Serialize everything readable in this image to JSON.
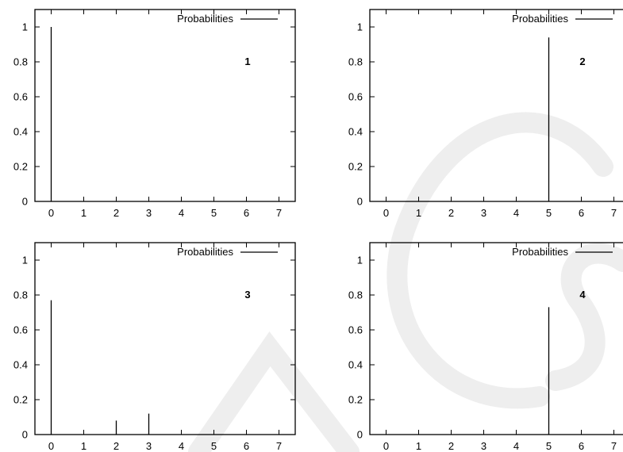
{
  "chart_data": [
    {
      "type": "bar",
      "legend": "Probabilities",
      "legend_position": "top-right",
      "panel_label": "1",
      "x": [
        0,
        1,
        2,
        3,
        4,
        5,
        6,
        7
      ],
      "values": [
        1.0,
        0,
        0,
        0,
        0,
        0,
        0,
        0
      ],
      "xlim": [
        -0.5,
        7.5
      ],
      "ylim": [
        0,
        1.1
      ],
      "yticks": [
        0,
        0.2,
        0.4,
        0.6,
        0.8,
        1
      ],
      "ytick_labels": [
        "0",
        "0.2",
        "0.4",
        "0.6",
        "0.8",
        "1"
      ],
      "xtick_labels": [
        "0",
        "1",
        "2",
        "3",
        "4",
        "5",
        "6",
        "7"
      ]
    },
    {
      "type": "bar",
      "legend": "Probabilities",
      "legend_position": "top-right",
      "panel_label": "2",
      "x": [
        0,
        1,
        2,
        3,
        4,
        5,
        6,
        7
      ],
      "values": [
        0,
        0,
        0,
        0,
        0,
        0.94,
        0,
        0
      ],
      "xlim": [
        -0.5,
        7.5
      ],
      "ylim": [
        0,
        1.1
      ],
      "yticks": [
        0,
        0.2,
        0.4,
        0.6,
        0.8,
        1
      ],
      "ytick_labels": [
        "0",
        "0.2",
        "0.4",
        "0.6",
        "0.8",
        "1"
      ],
      "xtick_labels": [
        "0",
        "1",
        "2",
        "3",
        "4",
        "5",
        "6",
        "7"
      ]
    },
    {
      "type": "bar",
      "legend": "Probabilities",
      "legend_position": "top-right",
      "panel_label": "3",
      "x": [
        0,
        1,
        2,
        3,
        4,
        5,
        6,
        7
      ],
      "values": [
        0.77,
        0,
        0.08,
        0.12,
        0,
        0,
        0,
        0
      ],
      "xlim": [
        -0.5,
        7.5
      ],
      "ylim": [
        0,
        1.1
      ],
      "yticks": [
        0,
        0.2,
        0.4,
        0.6,
        0.8,
        1
      ],
      "ytick_labels": [
        "0",
        "0.2",
        "0.4",
        "0.6",
        "0.8",
        "1"
      ],
      "xtick_labels": [
        "0",
        "1",
        "2",
        "3",
        "4",
        "5",
        "6",
        "7"
      ]
    },
    {
      "type": "bar",
      "legend": "Probabilities",
      "legend_position": "top-right",
      "panel_label": "4",
      "x": [
        0,
        1,
        2,
        3,
        4,
        5,
        6,
        7
      ],
      "values": [
        0,
        0,
        0,
        0,
        0,
        0.73,
        0,
        0
      ],
      "xlim": [
        -0.5,
        7.5
      ],
      "ylim": [
        0,
        1.1
      ],
      "yticks": [
        0,
        0.2,
        0.4,
        0.6,
        0.8,
        1
      ],
      "ytick_labels": [
        "0",
        "0.2",
        "0.4",
        "0.6",
        "0.8",
        "1"
      ],
      "xtick_labels": [
        "0",
        "1",
        "2",
        "3",
        "4",
        "5",
        "6",
        "7"
      ]
    }
  ]
}
